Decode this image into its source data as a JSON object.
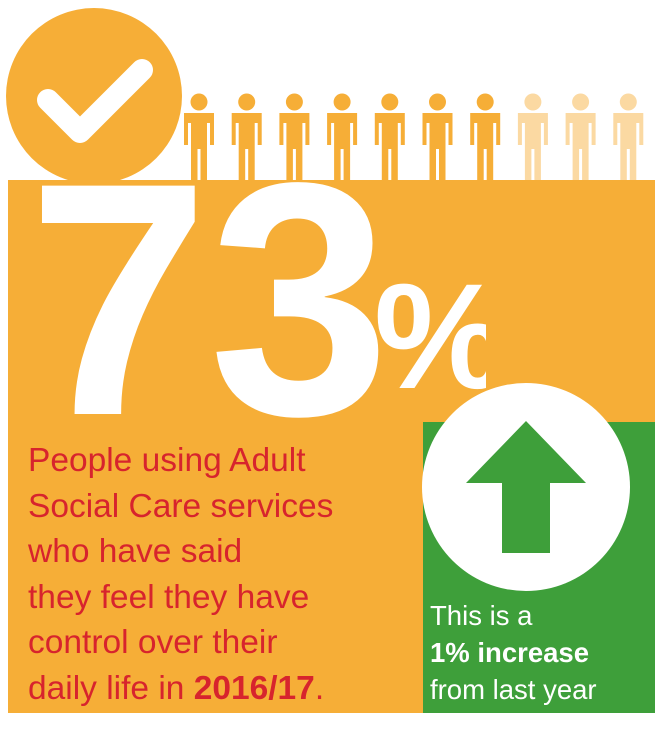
{
  "stat": {
    "number": "73",
    "percent_sign": "%",
    "value_percent": 73
  },
  "people_icons": {
    "total": 10,
    "highlighted": 7
  },
  "description": {
    "lines": [
      "People using Adult",
      "Social Care services",
      "who have said",
      "they feel they have",
      "control over their"
    ],
    "last_line_prefix": "daily life in ",
    "year": "2016/17",
    "last_line_suffix": "."
  },
  "change": {
    "line1": "This is a",
    "highlight": "1% increase",
    "line3": "from last year"
  },
  "icons": {
    "check": "checkmark-icon",
    "person": "person-icon",
    "arrow": "arrow-up-icon"
  },
  "colors": {
    "orange": "#F6AE37",
    "light_orange": "#FBD9A2",
    "red_text": "#D7242D",
    "green": "#3E9F3A",
    "white": "#FFFFFF"
  }
}
